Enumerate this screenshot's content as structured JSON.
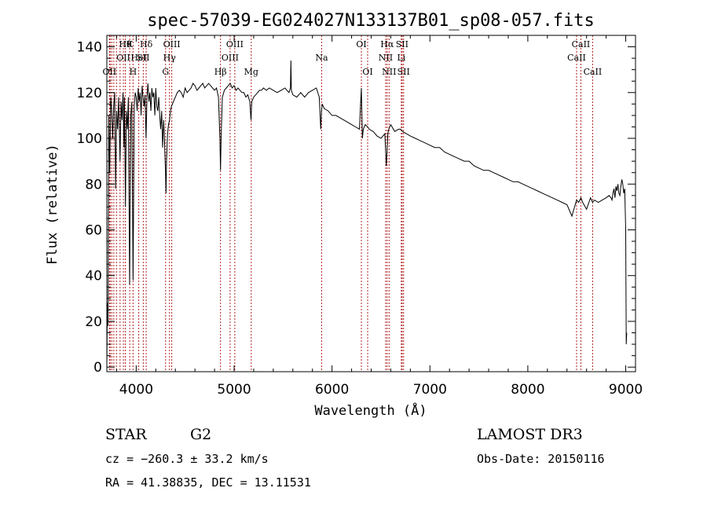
{
  "chart_data": {
    "type": "line",
    "title": "spec-57039-EG024027N133137B01_sp08-057.fits",
    "xlabel": "Wavelength (Å)",
    "ylabel": "Flux (relative)",
    "xlim": [
      3700,
      9100
    ],
    "ylim": [
      -2,
      145
    ],
    "x_ticks": [
      4000,
      5000,
      6000,
      7000,
      8000,
      9000
    ],
    "y_ticks": [
      0,
      20,
      40,
      60,
      80,
      100,
      120,
      140
    ],
    "line_color": "#000000",
    "marker_color": "#b22222",
    "series": [
      {
        "x": [
          3700,
          3705,
          3712,
          3720,
          3730,
          3740,
          3750,
          3760,
          3770,
          3780,
          3790,
          3800,
          3810,
          3820,
          3835,
          3845,
          3855,
          3865,
          3875,
          3880,
          3890,
          3900,
          3910,
          3920,
          3933,
          3945,
          3955,
          3968,
          3980,
          3990,
          4000,
          4010,
          4020,
          4030,
          4040,
          4050,
          4060,
          4070,
          4080,
          4090,
          4100,
          4110,
          4120,
          4130,
          4140,
          4150,
          4160,
          4170,
          4180,
          4190,
          4200,
          4210,
          4220,
          4230,
          4240,
          4250,
          4260,
          4270,
          4280,
          4290,
          4300,
          4305,
          4310,
          4320,
          4330,
          4340,
          4350,
          4360,
          4380,
          4400,
          4420,
          4440,
          4460,
          4480,
          4500,
          4520,
          4540,
          4560,
          4580,
          4600,
          4620,
          4640,
          4660,
          4680,
          4700,
          4720,
          4740,
          4760,
          4780,
          4800,
          4820,
          4840,
          4855,
          4861,
          4868,
          4880,
          4900,
          4920,
          4940,
          4960,
          4980,
          5000,
          5020,
          5040,
          5060,
          5080,
          5100,
          5120,
          5140,
          5160,
          5172,
          5180,
          5200,
          5220,
          5240,
          5260,
          5280,
          5300,
          5330,
          5360,
          5400,
          5440,
          5480,
          5520,
          5560,
          5575,
          5580,
          5585,
          5600,
          5640,
          5680,
          5720,
          5760,
          5800,
          5840,
          5870,
          5885,
          5893,
          5900,
          5920,
          5960,
          6000,
          6040,
          6080,
          6120,
          6160,
          6200,
          6240,
          6280,
          6300,
          6310,
          6320,
          6340,
          6364,
          6380,
          6420,
          6460,
          6500,
          6540,
          6555,
          6563,
          6570,
          6580,
          6600,
          6640,
          6680,
          6700,
          6720,
          6760,
          6800,
          6850,
          6900,
          6950,
          7000,
          7050,
          7100,
          7150,
          7200,
          7250,
          7300,
          7350,
          7400,
          7450,
          7500,
          7550,
          7600,
          7650,
          7700,
          7750,
          7800,
          7850,
          7900,
          7950,
          8000,
          8050,
          8100,
          8150,
          8200,
          8250,
          8300,
          8350,
          8400,
          8450,
          8498,
          8520,
          8542,
          8560,
          8600,
          8640,
          8662,
          8680,
          8720,
          8760,
          8800,
          8830,
          8850,
          8860,
          8870,
          8880,
          8890,
          8900,
          8910,
          8920,
          8930,
          8940,
          8950,
          8960,
          8970,
          8980,
          8990,
          9000,
          9005,
          9010
        ],
        "y": [
          0,
          28,
          18,
          110,
          85,
          118,
          112,
          100,
          114,
          120,
          78,
          112,
          104,
          118,
          90,
          116,
          108,
          120,
          96,
          118,
          70,
          112,
          104,
          118,
          36,
          110,
          116,
          38,
          114,
          120,
          118,
          112,
          122,
          116,
          120,
          110,
          123,
          118,
          114,
          119,
          100,
          118,
          124,
          116,
          120,
          112,
          122,
          118,
          120,
          110,
          122,
          114,
          112,
          118,
          110,
          104,
          112,
          96,
          108,
          98,
          84,
          76,
          90,
          102,
          106,
          108,
          112,
          114,
          116,
          118,
          120,
          121,
          120,
          118,
          122,
          120,
          121,
          122,
          124,
          123,
          121,
          122,
          123,
          124,
          122,
          123,
          124,
          123,
          122,
          121,
          122,
          118,
          100,
          86,
          102,
          118,
          121,
          122,
          123,
          124,
          122,
          123,
          121,
          122,
          121,
          120,
          120,
          118,
          119,
          116,
          108,
          116,
          118,
          119,
          120,
          121,
          121,
          122,
          121,
          122,
          121,
          120,
          121,
          122,
          120,
          122,
          134,
          121,
          119,
          118,
          120,
          118,
          120,
          121,
          122,
          118,
          104,
          112,
          115,
          113,
          112,
          110,
          110,
          109,
          108,
          107,
          106,
          105,
          104,
          122,
          100,
          104,
          106,
          105,
          104,
          103,
          101,
          100,
          102,
          88,
          95,
          102,
          104,
          106,
          103,
          104,
          104,
          103,
          102,
          101,
          100,
          99,
          98,
          97,
          96,
          96,
          94,
          93,
          92,
          91,
          90,
          90,
          88,
          87,
          86,
          86,
          85,
          84,
          83,
          82,
          81,
          81,
          80,
          79,
          78,
          77,
          76,
          75,
          74,
          73,
          72,
          71,
          66,
          73,
          72,
          74,
          72,
          69,
          74,
          72,
          73,
          72,
          73,
          74,
          75,
          74,
          73,
          76,
          78,
          74,
          79,
          77,
          80,
          76,
          75,
          79,
          82,
          80,
          76,
          78,
          60,
          10,
          15
        ]
      }
    ],
    "lines": [
      {
        "w": 3727,
        "top": "OII",
        "row": 2
      },
      {
        "w": 3734,
        "top": "",
        "row": 0
      },
      {
        "w": 3750,
        "top": "",
        "row": 0
      },
      {
        "w": 3771,
        "top": "",
        "row": 0
      },
      {
        "w": 3798,
        "top": "",
        "row": 0
      },
      {
        "w": 3835,
        "top": "",
        "row": 0
      },
      {
        "w": 3869,
        "top": "OII",
        "row": 1
      },
      {
        "w": 3889,
        "top": "Hθ",
        "row": 0
      },
      {
        "w": 3934,
        "top": "K",
        "row": 0
      },
      {
        "w": 3968,
        "top": "H",
        "row": 2
      },
      {
        "w": 4026,
        "top": "HeI",
        "row": 1
      },
      {
        "w": 4072,
        "top": "SII",
        "row": 1
      },
      {
        "w": 4102,
        "top": "Hδ",
        "row": 0
      },
      {
        "w": 4300,
        "top": "G",
        "row": 2
      },
      {
        "w": 4340,
        "top": "Hγ",
        "row": 1
      },
      {
        "w": 4363,
        "top": "OIII",
        "row": 0
      },
      {
        "w": 4861,
        "top": "Hβ",
        "row": 2
      },
      {
        "w": 4959,
        "top": "OIII",
        "row": 1
      },
      {
        "w": 5007,
        "top": "OIII",
        "row": 0
      },
      {
        "w": 5175,
        "top": "Mg",
        "row": 2
      },
      {
        "w": 5894,
        "top": "Na",
        "row": 1
      },
      {
        "w": 6300,
        "top": "OI",
        "row": 0
      },
      {
        "w": 6364,
        "top": "OI",
        "row": 2
      },
      {
        "w": 6548,
        "top": "NII",
        "row": 1
      },
      {
        "w": 6563,
        "top": "Hα",
        "row": 0
      },
      {
        "w": 6583,
        "top": "NII",
        "row": 2
      },
      {
        "w": 6708,
        "top": "Li",
        "row": 1
      },
      {
        "w": 6716,
        "top": "SII",
        "row": 0
      },
      {
        "w": 6731,
        "top": "SII",
        "row": 2
      },
      {
        "w": 8498,
        "top": "CaII",
        "row": 1
      },
      {
        "w": 8542,
        "top": "CaII",
        "row": 0
      },
      {
        "w": 8662,
        "top": "CaII",
        "row": 2
      }
    ]
  },
  "info": {
    "object_class": "STAR",
    "subclass": "G2",
    "survey": "LAMOST DR3",
    "redshift_line": "cz = −260.3 ± 33.2 km/s",
    "obs_date": "Obs-Date: 20150116",
    "coords": "RA =  41.38835, DEC =  13.11531"
  }
}
